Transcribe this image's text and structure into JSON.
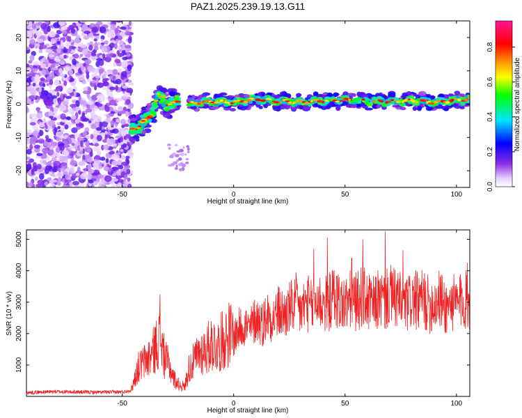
{
  "title": "PAZ1.2025.239.19.13.G11",
  "chart_data": [
    {
      "type": "heatmap",
      "title": "PAZ1.2025.239.19.13.G11",
      "xlabel": "Height of straight line (km)",
      "ylabel": "Frequency (Hz)",
      "xlim": [
        -93,
        106
      ],
      "ylim": [
        -25,
        25
      ],
      "xticks": [
        -50,
        0,
        50,
        100
      ],
      "yticks": [
        -20,
        -10,
        0,
        10,
        20
      ],
      "xtick_labels": [
        "-50",
        "0",
        "50",
        "100"
      ],
      "ytick_labels": [
        "-20",
        "-10",
        "0",
        "10",
        "20"
      ],
      "noise_region_x": [
        -93,
        -46
      ],
      "transition_track": [
        {
          "x": -46,
          "y": -7.5
        },
        {
          "x": -43,
          "y": -7
        },
        {
          "x": -40,
          "y": -5
        },
        {
          "x": -38,
          "y": -4
        },
        {
          "x": -36,
          "y": -2
        },
        {
          "x": -34,
          "y": 3
        },
        {
          "x": -32,
          "y": 1
        },
        {
          "x": -30,
          "y": 0
        },
        {
          "x": -25,
          "y": 0.5
        }
      ],
      "signal_track": [
        {
          "x": -20,
          "y": 0.2
        },
        {
          "x": -10,
          "y": 0.8
        },
        {
          "x": 0,
          "y": 0.5
        },
        {
          "x": 10,
          "y": 1.5
        },
        {
          "x": 20,
          "y": 0.9
        },
        {
          "x": 30,
          "y": 0.6
        },
        {
          "x": 40,
          "y": 1.0
        },
        {
          "x": 50,
          "y": 1.2
        },
        {
          "x": 60,
          "y": 1.0
        },
        {
          "x": 70,
          "y": 0.8
        },
        {
          "x": 80,
          "y": 1.1
        },
        {
          "x": 90,
          "y": 0.5
        },
        {
          "x": 100,
          "y": 1.2
        },
        {
          "x": 106,
          "y": 1.5
        }
      ],
      "colorbar": {
        "label": "Normalized spectral amplitude",
        "range": [
          0,
          0.95
        ],
        "ticks": [
          0.0,
          0.2,
          0.4,
          0.6,
          0.8
        ],
        "tick_labels": [
          "0.0",
          "0.2",
          "0.4",
          "0.6",
          "0.8"
        ],
        "colormap": "rainbow (white-purple-blue-cyan-green-yellow-orange-red-magenta)"
      }
    },
    {
      "type": "line",
      "xlabel": "Height of straight line (km)",
      "ylabel": "SNR (10 * v/v)",
      "xlim": [
        -93,
        106
      ],
      "ylim": [
        0,
        5300
      ],
      "xticks": [
        -50,
        0,
        50,
        100
      ],
      "yticks": [
        1000,
        2000,
        3000,
        4000,
        5000
      ],
      "xtick_labels": [
        "-50",
        "0",
        "50",
        "100"
      ],
      "ytick_labels": [
        "1000",
        "2000",
        "3000",
        "4000",
        "5000"
      ],
      "line_color": "#ee2222",
      "series": [
        {
          "x": [
            -93,
            -80,
            -60,
            -50,
            -46,
            -43,
            -40,
            -37,
            -35,
            -33,
            -31,
            -29,
            -27,
            -25,
            -22,
            -20,
            -17,
            -15,
            -12,
            -10,
            -7,
            -5,
            -2,
            0,
            3,
            5,
            7,
            10,
            13,
            15,
            18,
            20,
            23,
            25,
            28,
            30,
            33,
            35,
            38,
            40,
            43,
            45,
            48,
            50,
            53,
            55,
            58,
            60,
            63,
            65,
            68,
            70,
            73,
            75,
            78,
            80,
            83,
            85,
            88,
            90,
            93,
            95,
            98,
            100,
            103,
            106
          ],
          "y": [
            120,
            150,
            130,
            140,
            200,
            900,
            1100,
            1300,
            1600,
            1900,
            1200,
            1000,
            600,
            400,
            300,
            900,
            1200,
            1400,
            1500,
            1700,
            1600,
            1800,
            2000,
            1900,
            2200,
            2300,
            2100,
            2500,
            2300,
            2600,
            2500,
            2700,
            2600,
            2800,
            2900,
            2700,
            3000,
            2800,
            3100,
            2900,
            3000,
            3200,
            3000,
            2900,
            3100,
            3000,
            3200,
            3000,
            2900,
            3100,
            3000,
            3200,
            3100,
            3000,
            2900,
            3100,
            3000,
            3100,
            2900,
            3000,
            3100,
            2800,
            3000,
            2900,
            3100,
            3000
          ],
          "spikes": [
            {
              "x": -33,
              "y": 3250
            },
            {
              "x": 28,
              "y": 3950
            },
            {
              "x": 36,
              "y": 4700
            },
            {
              "x": 42,
              "y": 5050
            },
            {
              "x": 53,
              "y": 4400
            },
            {
              "x": 58,
              "y": 5000
            },
            {
              "x": 68,
              "y": 5250
            },
            {
              "x": 76,
              "y": 4650
            },
            {
              "x": 105,
              "y": 4250
            }
          ]
        }
      ]
    }
  ]
}
